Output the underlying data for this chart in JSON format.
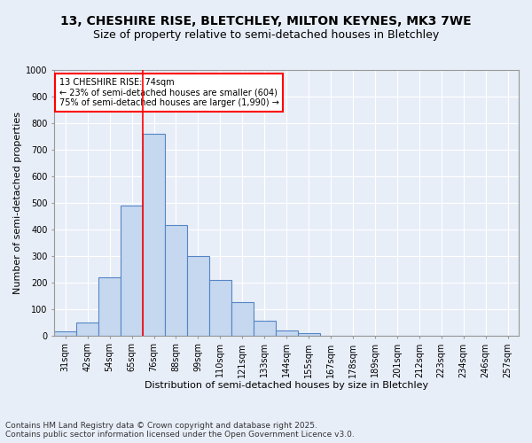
{
  "title_line1": "13, CHESHIRE RISE, BLETCHLEY, MILTON KEYNES, MK3 7WE",
  "title_line2": "Size of property relative to semi-detached houses in Bletchley",
  "xlabel": "Distribution of semi-detached houses by size in Bletchley",
  "ylabel": "Number of semi-detached properties",
  "categories": [
    "31sqm",
    "42sqm",
    "54sqm",
    "65sqm",
    "76sqm",
    "88sqm",
    "99sqm",
    "110sqm",
    "121sqm",
    "133sqm",
    "144sqm",
    "155sqm",
    "167sqm",
    "178sqm",
    "189sqm",
    "201sqm",
    "212sqm",
    "223sqm",
    "234sqm",
    "246sqm",
    "257sqm"
  ],
  "values": [
    15,
    50,
    220,
    490,
    760,
    415,
    300,
    210,
    125,
    55,
    20,
    10,
    0,
    0,
    0,
    0,
    0,
    0,
    0,
    0,
    0
  ],
  "bar_color": "#c5d8f0",
  "bar_edge_color": "#5585c5",
  "vline_color": "red",
  "vline_x_index": 4,
  "annotation_title": "13 CHESHIRE RISE: 74sqm",
  "annotation_line2": "← 23% of semi-detached houses are smaller (604)",
  "annotation_line3": "75% of semi-detached houses are larger (1,990) →",
  "annotation_box_color": "red",
  "ylim": [
    0,
    1000
  ],
  "yticks": [
    0,
    100,
    200,
    300,
    400,
    500,
    600,
    700,
    800,
    900,
    1000
  ],
  "footer_line1": "Contains HM Land Registry data © Crown copyright and database right 2025.",
  "footer_line2": "Contains public sector information licensed under the Open Government Licence v3.0.",
  "bg_color": "#e8eef8",
  "plot_bg_color": "#e8eef8",
  "grid_color": "#ffffff",
  "title_fontsize": 10,
  "subtitle_fontsize": 9,
  "axis_label_fontsize": 8,
  "tick_fontsize": 7,
  "annotation_fontsize": 7,
  "footer_fontsize": 6.5
}
